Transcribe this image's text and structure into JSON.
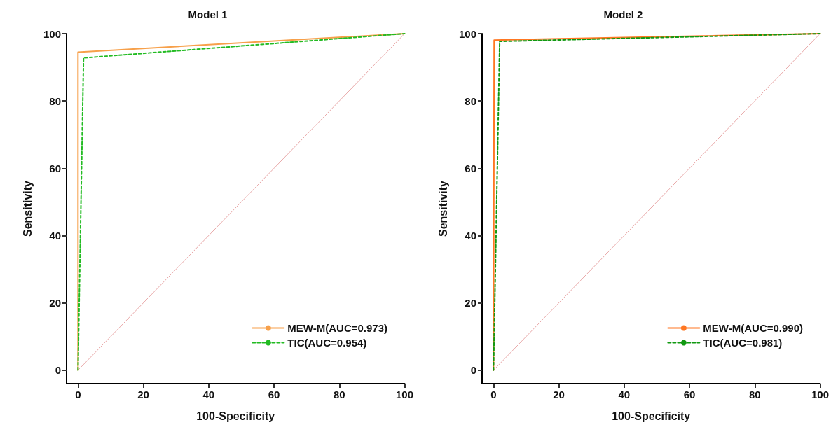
{
  "chart_data": [
    {
      "type": "line",
      "title": "Model 1",
      "xlabel": "100-Specificity",
      "ylabel": "Sensitivity",
      "xlim": [
        -3.5,
        100
      ],
      "xticks": [
        0,
        20,
        40,
        60,
        80,
        100
      ],
      "ylim": [
        -4,
        100
      ],
      "yticks": [
        0,
        20,
        40,
        60,
        80,
        100
      ],
      "grid": false,
      "legend": "bottom right",
      "marker": "none",
      "series": [
        {
          "name": "MEW-M(AUC=0.973)",
          "color": "#f7a04a",
          "x": [
            0,
            0,
            100
          ],
          "values": [
            0,
            94.5,
            100
          ],
          "line_style": "solid"
        },
        {
          "name": "TIC(AUC=0.954)",
          "color": "#22bb22",
          "x": [
            0,
            1.7,
            100
          ],
          "values": [
            0,
            92.8,
            100
          ],
          "line_style": "dashed"
        },
        {
          "color": "#e8a8a8",
          "x": [
            0,
            100
          ],
          "values": [
            0,
            100
          ],
          "line_style": "solid"
        }
      ]
    },
    {
      "type": "line",
      "title": "Model 2",
      "xlabel": "100-Specificity",
      "ylabel": "Sensitivity",
      "xlim": [
        -3.5,
        100
      ],
      "xticks": [
        0,
        20,
        40,
        60,
        80,
        100
      ],
      "ylim": [
        -4,
        100
      ],
      "yticks": [
        0,
        20,
        40,
        60,
        80,
        100
      ],
      "grid": false,
      "legend": "bottom right",
      "marker": "none",
      "series": [
        {
          "name": "MEW-M(AUC=0.990)",
          "color": "#ff7722",
          "x": [
            0,
            0.2,
            100
          ],
          "values": [
            0,
            98.1,
            100
          ],
          "line_style": "solid"
        },
        {
          "name": "TIC(AUC=0.981)",
          "color": "#119911",
          "x": [
            0,
            1.9,
            100
          ],
          "values": [
            0,
            97.7,
            100
          ],
          "line_style": "dashed"
        },
        {
          "color": "#e8a8a8",
          "x": [
            0,
            100
          ],
          "values": [
            0,
            100
          ],
          "line_style": "solid"
        }
      ]
    }
  ]
}
